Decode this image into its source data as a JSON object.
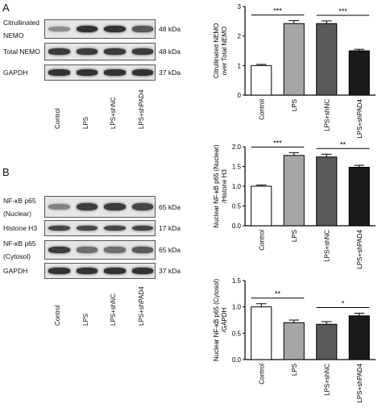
{
  "panelA": {
    "letter": "A",
    "blots": [
      {
        "label_lines": [
          "Citrullinated",
          "NEMO"
        ],
        "kda": "48 kDa",
        "intensities": [
          0.45,
          0.9,
          0.9,
          0.72
        ]
      },
      {
        "label_lines": [
          "Total NEMO"
        ],
        "kda": "48 kDa",
        "intensities": [
          0.85,
          0.85,
          0.85,
          0.85
        ]
      },
      {
        "label_lines": [
          "GAPDH"
        ],
        "kda": "37 kDa",
        "intensities": [
          0.9,
          0.9,
          0.9,
          0.9
        ]
      }
    ],
    "lanes": [
      "Control",
      "LPS",
      "LPS+shNC",
      "LPS+shPAD4"
    ]
  },
  "panelB": {
    "letter": "B",
    "blots": [
      {
        "label_lines": [
          "NF-κB p65",
          "(Nuclear)"
        ],
        "kda": "65 kDa",
        "intensities": [
          0.5,
          0.85,
          0.85,
          0.8
        ]
      },
      {
        "label_lines": [
          "Histone H3"
        ],
        "kda": "17 kDa",
        "intensities": [
          0.8,
          0.8,
          0.8,
          0.8
        ]
      },
      {
        "label_lines": [
          "NF-κB p65",
          "(Cytosol)"
        ],
        "kda": "65 kDa",
        "intensities": [
          0.85,
          0.6,
          0.6,
          0.7
        ]
      },
      {
        "label_lines": [
          "GAPDH"
        ],
        "kda": "37 kDa",
        "intensities": [
          0.9,
          0.9,
          0.9,
          0.9
        ]
      }
    ],
    "lanes": [
      "Control",
      "LPS",
      "LPS+shNC",
      "LPS+shPAD4"
    ]
  },
  "chart_data": [
    {
      "type": "bar",
      "categories": [
        "Control",
        "LPS",
        "LPS+shNC",
        "LPS+shPAD4"
      ],
      "values": [
        1.0,
        2.42,
        2.42,
        1.5
      ],
      "errors": [
        0.04,
        0.1,
        0.09,
        0.05
      ],
      "bar_colors": [
        "#ffffff",
        "#a6a6a6",
        "#595959",
        "#1a1a1a"
      ],
      "ylabel_lines": [
        "Citrullinated NEMO",
        "over Total NEMO"
      ],
      "ylim": [
        0,
        3
      ],
      "yticks": [
        "0",
        "1",
        "2",
        "3"
      ],
      "significance": [
        {
          "from": 0,
          "to": 1,
          "label": "***"
        },
        {
          "from": 2,
          "to": 3,
          "label": "***"
        }
      ]
    },
    {
      "type": "bar",
      "categories": [
        "Control",
        "LPS",
        "LPS+shNC",
        "LPS+shPAD4"
      ],
      "values": [
        1.0,
        1.78,
        1.74,
        1.48
      ],
      "errors": [
        0.03,
        0.07,
        0.07,
        0.05
      ],
      "bar_colors": [
        "#ffffff",
        "#a6a6a6",
        "#595959",
        "#1a1a1a"
      ],
      "ylabel_lines": [
        "Nuclear NF-κB p65 (Nuclear)",
        "/Histone H3"
      ],
      "ylim": [
        0,
        2
      ],
      "yticks": [
        "0.0",
        "0.5",
        "1.0",
        "1.5",
        "2.0"
      ],
      "significance": [
        {
          "from": 0,
          "to": 1,
          "label": "***"
        },
        {
          "from": 2,
          "to": 3,
          "label": "**"
        }
      ]
    },
    {
      "type": "bar",
      "categories": [
        "Control",
        "LPS",
        "LPS+shNC",
        "LPS+shPAD4"
      ],
      "values": [
        1.0,
        0.7,
        0.67,
        0.83
      ],
      "errors": [
        0.06,
        0.05,
        0.05,
        0.05
      ],
      "bar_colors": [
        "#ffffff",
        "#a6a6a6",
        "#595959",
        "#1a1a1a"
      ],
      "ylabel_lines": [
        "Nuclear NF-κB p65 (Cytosol)",
        "/GAPDH"
      ],
      "ylim": [
        0,
        1.5
      ],
      "yticks": [
        "0.0",
        "0.5",
        "1.0",
        "1.5"
      ],
      "significance": [
        {
          "from": 0,
          "to": 1,
          "label": "**"
        },
        {
          "from": 2,
          "to": 3,
          "label": "*"
        }
      ]
    }
  ]
}
